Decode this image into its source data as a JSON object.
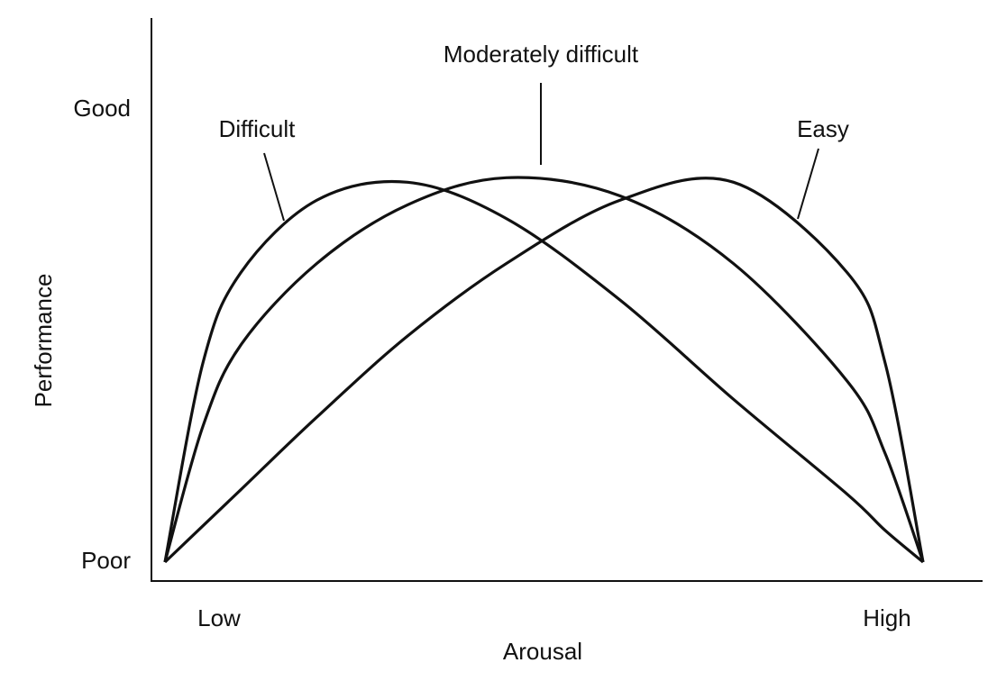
{
  "chart_data": {
    "type": "line",
    "x_label": "Arousal",
    "y_label": "Performance",
    "x": [
      0,
      5,
      10,
      20,
      32,
      45,
      60,
      75,
      90,
      95,
      100
    ],
    "xlim": [
      0,
      100
    ],
    "ylim": [
      0,
      100
    ],
    "xticks": [
      {
        "value": 0,
        "label": "Low"
      },
      {
        "value": 100,
        "label": "High"
      }
    ],
    "yticks": [
      {
        "value": 0,
        "label": "Poor"
      },
      {
        "value": 100,
        "label": "Good"
      }
    ],
    "grid": false,
    "series": [
      {
        "name": "Difficult",
        "color": "#111111",
        "values": [
          0,
          44,
          64,
          80,
          84,
          76,
          58,
          36,
          15,
          7,
          0
        ]
      },
      {
        "name": "Moderately difficult",
        "color": "#111111",
        "values": [
          0,
          30,
          48,
          66,
          79,
          85,
          81,
          66,
          40,
          24,
          0
        ]
      },
      {
        "name": "Easy",
        "color": "#111111",
        "values": [
          0,
          8,
          16,
          32,
          50,
          66,
          80,
          84,
          64,
          44,
          0
        ]
      }
    ]
  }
}
